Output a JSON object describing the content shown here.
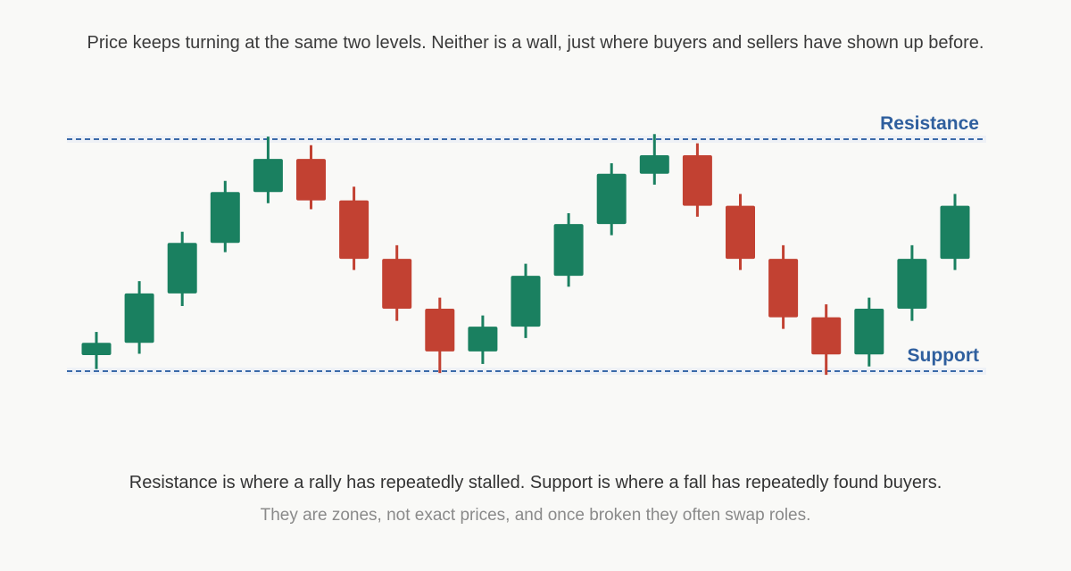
{
  "headline": "Price keeps turning at the same two levels. Neither is a wall, just where buyers and sellers have shown up before.",
  "caption": {
    "main": "Resistance is where a rally has repeatedly stalled. Support is where a fall has repeatedly found buyers.",
    "sub": "They are zones, not exact prices, and once broken they often swap roles."
  },
  "colors": {
    "up": "#1a8060",
    "down": "#c24132",
    "level_line": "#3b6aa9",
    "level_label": "#2f5f9e",
    "zone": "#eef1f6"
  },
  "chart_data": {
    "type": "candlestick",
    "title": "",
    "xlabel": "",
    "ylabel": "",
    "ylim": [
      0,
      100
    ],
    "grid": false,
    "legend": "none",
    "levels": [
      {
        "label": "Resistance",
        "value": 100
      },
      {
        "label": "Support",
        "value": 0
      }
    ],
    "candles": [
      {
        "open": 6.9,
        "high": 16.9,
        "low": 0.9,
        "close": 12.2
      },
      {
        "open": 12.2,
        "high": 38.8,
        "low": 7.5,
        "close": 33.5
      },
      {
        "open": 33.5,
        "high": 60.1,
        "low": 28.1,
        "close": 55.3
      },
      {
        "open": 55.3,
        "high": 82.0,
        "low": 51.3,
        "close": 77.2
      },
      {
        "open": 77.2,
        "high": 101.1,
        "low": 72.4,
        "close": 91.5
      },
      {
        "open": 91.5,
        "high": 97.4,
        "low": 69.8,
        "close": 73.6
      },
      {
        "open": 73.6,
        "high": 79.5,
        "low": 43.6,
        "close": 48.4
      },
      {
        "open": 48.4,
        "high": 54.3,
        "low": 21.7,
        "close": 26.9
      },
      {
        "open": 26.9,
        "high": 31.7,
        "low": -0.8,
        "close": 8.5
      },
      {
        "open": 8.5,
        "high": 24.0,
        "low": 3.1,
        "close": 19.2
      },
      {
        "open": 19.2,
        "high": 46.3,
        "low": 14.3,
        "close": 41.1
      },
      {
        "open": 41.1,
        "high": 68.1,
        "low": 36.4,
        "close": 63.4
      },
      {
        "open": 63.4,
        "high": 89.6,
        "low": 58.6,
        "close": 85.1
      },
      {
        "open": 85.1,
        "high": 102.2,
        "low": 80.4,
        "close": 93.1
      },
      {
        "open": 93.1,
        "high": 98.2,
        "low": 66.6,
        "close": 71.3
      },
      {
        "open": 71.3,
        "high": 76.4,
        "low": 43.6,
        "close": 48.4
      },
      {
        "open": 48.4,
        "high": 54.3,
        "low": 18.2,
        "close": 23.2
      },
      {
        "open": 23.2,
        "high": 28.8,
        "low": -1.6,
        "close": 7.2
      },
      {
        "open": 7.2,
        "high": 31.7,
        "low": 2.0,
        "close": 26.9
      },
      {
        "open": 26.9,
        "high": 54.3,
        "low": 21.7,
        "close": 48.4
      },
      {
        "open": 48.4,
        "high": 76.4,
        "low": 43.6,
        "close": 71.3
      }
    ]
  }
}
